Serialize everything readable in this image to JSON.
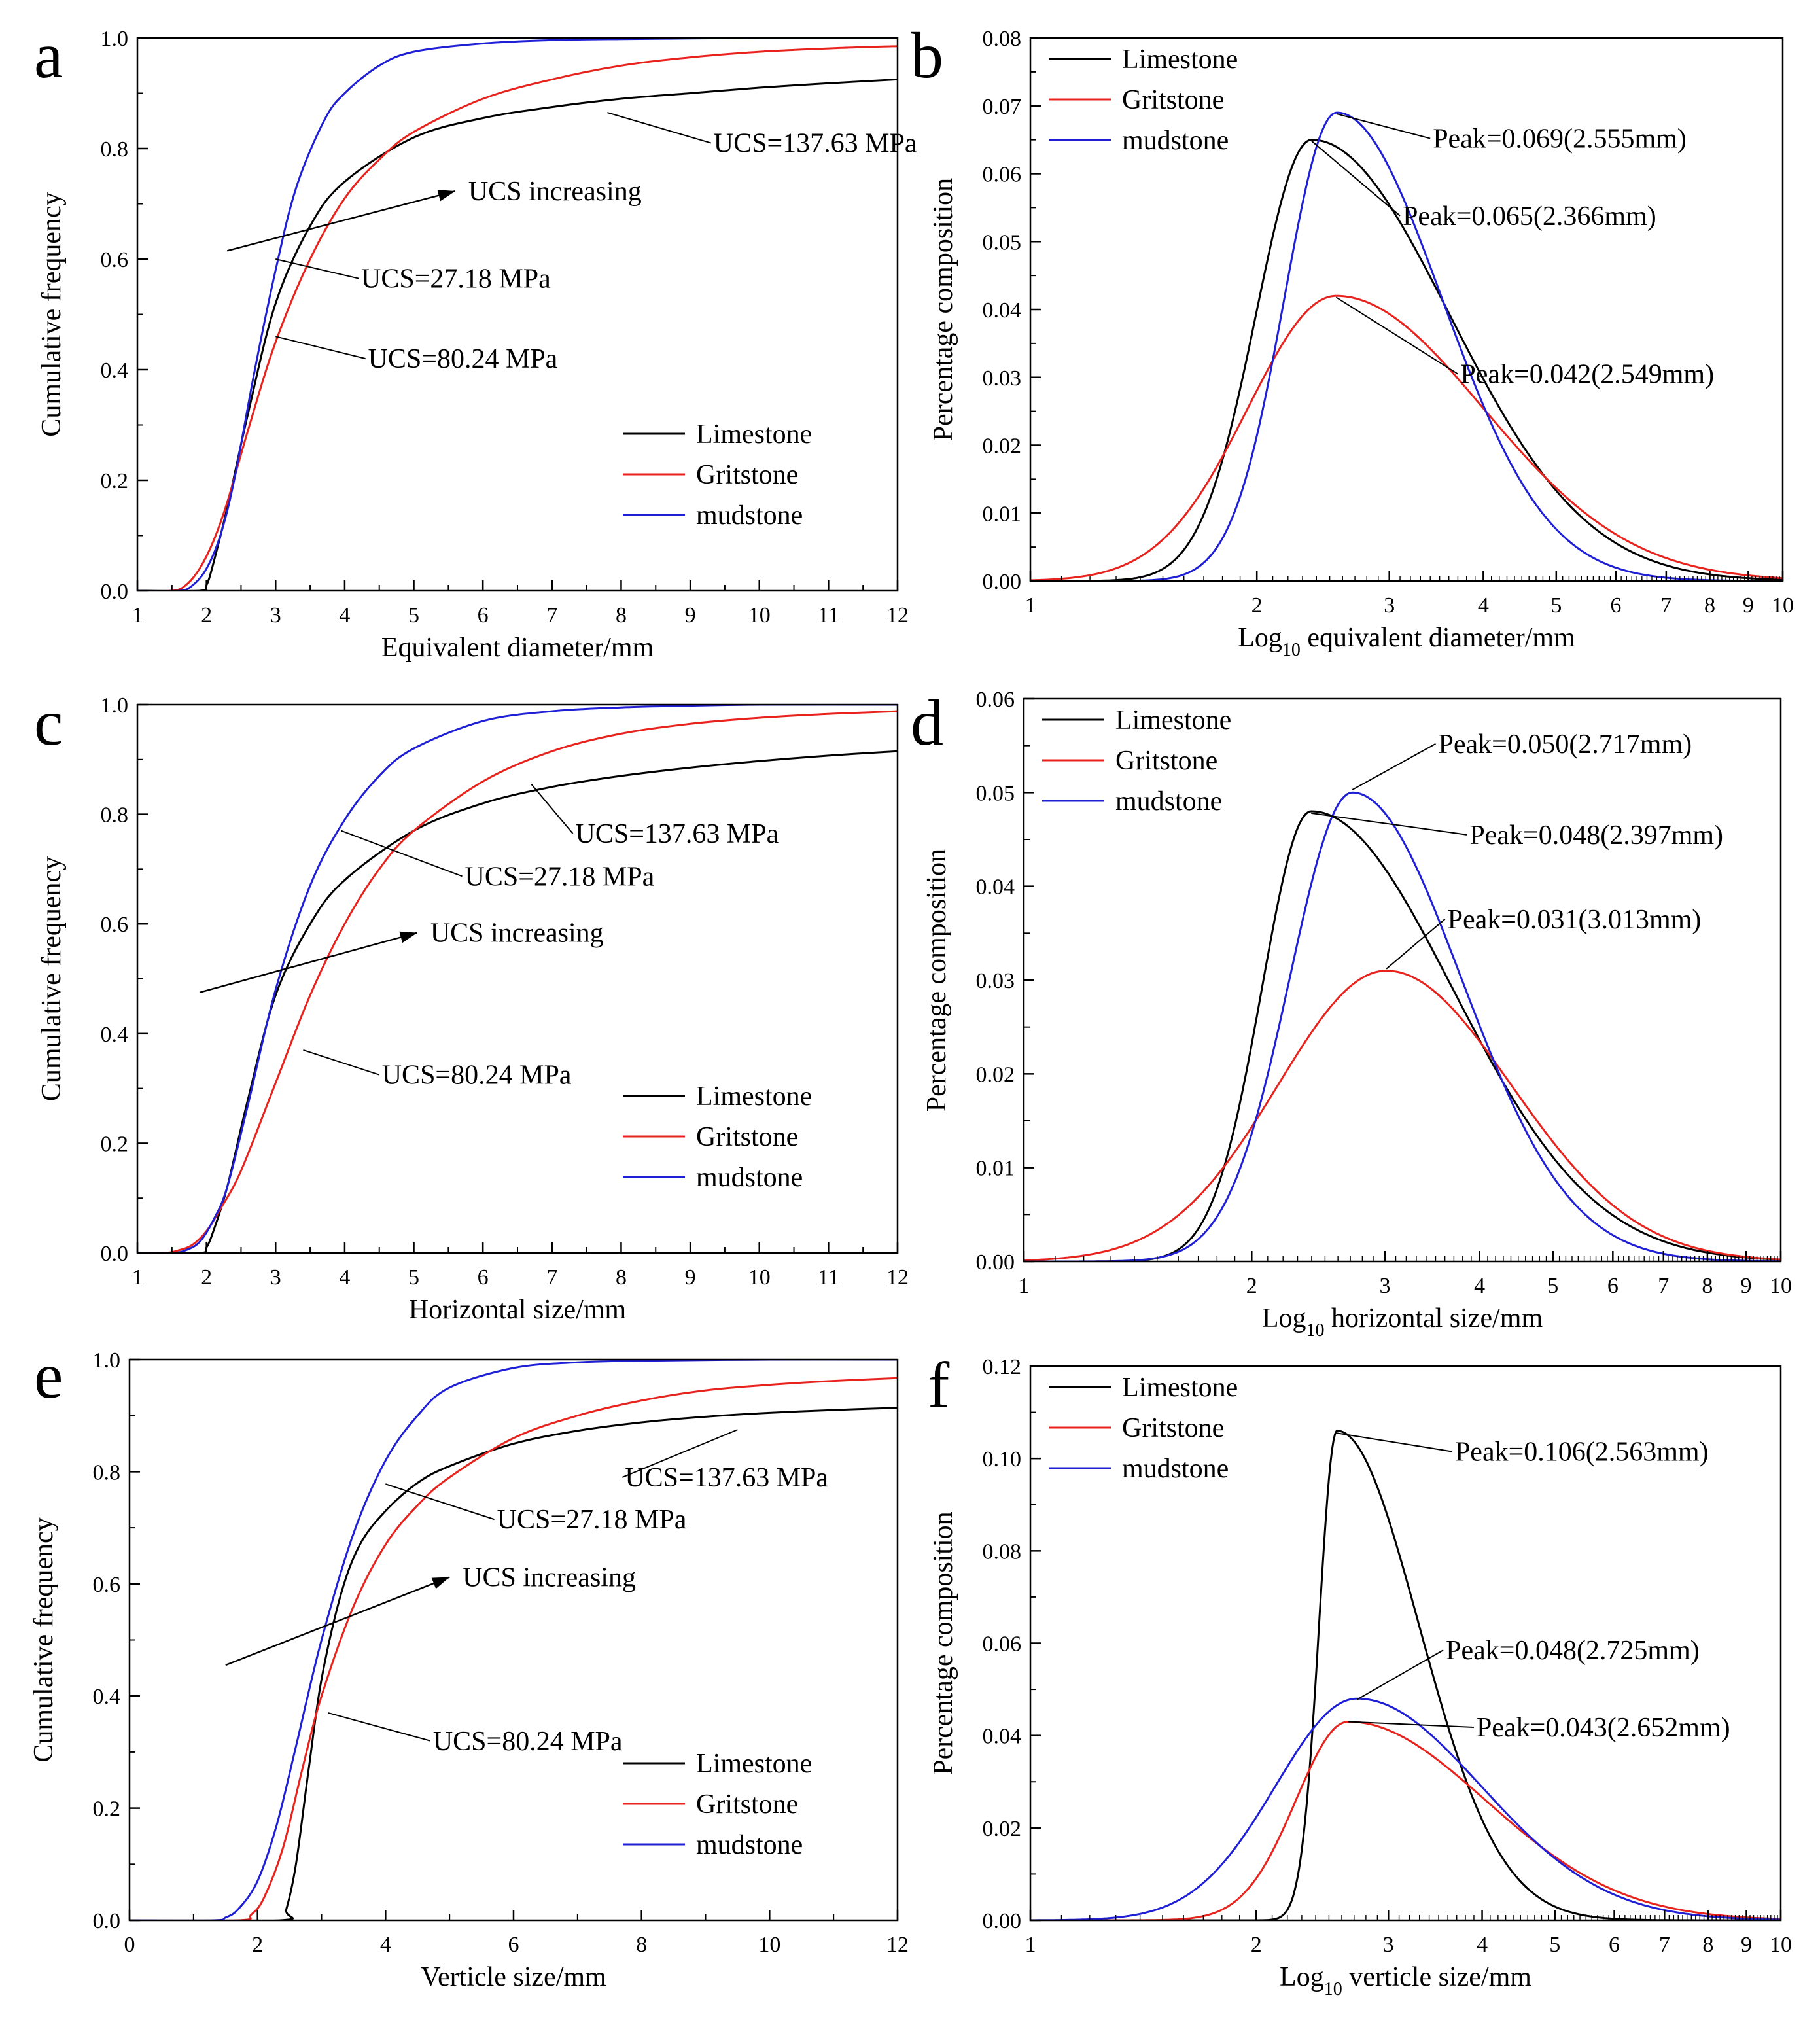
{
  "figure": {
    "series_names": [
      "Limestone",
      "Gritstone",
      "mudstone"
    ],
    "series_colors": {
      "Limestone": "#000000",
      "Gritstone": "#e8231d",
      "mudstone": "#1f1fd6"
    }
  },
  "chart_data": [
    {
      "panel": "a",
      "type": "line",
      "xlabel": "Equivalent diameter/mm",
      "ylabel": "Cumulative frequency",
      "xlim": [
        1,
        12
      ],
      "ylim": [
        0,
        1.0
      ],
      "xscale": "linear",
      "xticks": [
        1,
        2,
        3,
        4,
        5,
        6,
        7,
        8,
        9,
        10,
        11,
        12
      ],
      "yticks": [
        "0.0",
        "0.2",
        "0.4",
        "0.6",
        "0.8",
        "1.0"
      ],
      "legend": "bottom-right",
      "series": [
        {
          "name": "Limestone",
          "x": [
            1.0,
            1.9,
            2.0,
            2.1,
            2.3,
            2.6,
            3.0,
            3.5,
            4.0,
            5.0,
            6.0,
            7.0,
            8.0,
            9.0,
            10.0,
            11.0,
            12.0
          ],
          "y": [
            0,
            0,
            0.01,
            0.05,
            0.15,
            0.32,
            0.52,
            0.66,
            0.74,
            0.82,
            0.855,
            0.875,
            0.89,
            0.9,
            0.91,
            0.918,
            0.925
          ]
        },
        {
          "name": "Gritstone",
          "x": [
            1.0,
            1.5,
            1.7,
            1.9,
            2.1,
            2.3,
            2.6,
            3.0,
            3.5,
            4.0,
            4.5,
            5.0,
            6.0,
            7.0,
            8.0,
            9.0,
            10.0,
            11.0,
            12.0
          ],
          "y": [
            0,
            0,
            0.01,
            0.04,
            0.09,
            0.16,
            0.29,
            0.45,
            0.6,
            0.71,
            0.78,
            0.83,
            0.89,
            0.925,
            0.95,
            0.965,
            0.975,
            0.981,
            0.985
          ]
        },
        {
          "name": "mudstone",
          "x": [
            1.0,
            1.6,
            1.8,
            2.0,
            2.2,
            2.4,
            2.7,
            3.0,
            3.3,
            3.7,
            4.0,
            4.5,
            5.0,
            6.0,
            7.0,
            8.0,
            9.0,
            10.0,
            12.0
          ],
          "y": [
            0,
            0,
            0.01,
            0.04,
            0.1,
            0.2,
            0.4,
            0.58,
            0.73,
            0.85,
            0.9,
            0.95,
            0.975,
            0.99,
            0.996,
            0.998,
            0.999,
            1.0,
            1.0
          ]
        }
      ],
      "annotations": [
        {
          "text": "UCS=137.63 MPa",
          "x": 9.3,
          "y": 0.81,
          "tx": 7.8,
          "ty": 0.865,
          "arrow": false
        },
        {
          "text": "UCS increasing",
          "x": 5.6,
          "y": 0.72,
          "sx": 2.3,
          "sy": 0.615,
          "tx": 5.6,
          "ty": 0.723,
          "arrow": true
        },
        {
          "text": "UCS=27.18 MPa",
          "x": 4.2,
          "y": 0.565,
          "tx": 3.0,
          "ty": 0.6,
          "arrow": false
        },
        {
          "text": "UCS=80.24 MPa",
          "x": 4.3,
          "y": 0.42,
          "tx": 3.0,
          "ty": 0.46,
          "arrow": false
        }
      ]
    },
    {
      "panel": "b",
      "type": "line",
      "xlabel": "Log",
      "xlabel_sub": "10",
      "xlabel_tail": " equivalent diameter/mm",
      "ylabel": "Percentage composition",
      "xlim": [
        1,
        10
      ],
      "ylim": [
        0,
        0.08
      ],
      "xscale": "log",
      "xticks": [
        1,
        2,
        3,
        4,
        5,
        6,
        7,
        8,
        9,
        10
      ],
      "yticks": [
        "0.00",
        "0.01",
        "0.02",
        "0.03",
        "0.04",
        "0.05",
        "0.06",
        "0.07",
        "0.08"
      ],
      "legend": "top-left",
      "series": [
        {
          "name": "Limestone",
          "dist": "lognormal",
          "peak": 0.065,
          "mode": 2.366,
          "sl": 0.17,
          "sr": 0.42
        },
        {
          "name": "Gritstone",
          "dist": "lognormal",
          "peak": 0.042,
          "mode": 2.549,
          "sl": 0.27,
          "sr": 0.45
        },
        {
          "name": "mudstone",
          "dist": "lognormal",
          "peak": 0.069,
          "mode": 2.555,
          "sl": 0.16,
          "sr": 0.32
        }
      ],
      "annotations": [
        {
          "text": "Peak=0.069(2.555mm)",
          "x": 3.4,
          "y": 0.0652,
          "tx": 2.555,
          "ty": 0.0688,
          "arrow": false
        },
        {
          "text": "Peak=0.065(2.366mm)",
          "x": 3.1,
          "y": 0.0538,
          "tx": 2.366,
          "ty": 0.0648,
          "arrow": false
        },
        {
          "text": "Peak=0.042(2.549mm)",
          "x": 3.7,
          "y": 0.0305,
          "tx": 2.549,
          "ty": 0.0418,
          "arrow": false
        }
      ]
    },
    {
      "panel": "c",
      "type": "line",
      "xlabel": "Horizontal size/mm",
      "ylabel": "Cumulative frequency",
      "xlim": [
        1,
        12
      ],
      "ylim": [
        0,
        1.0
      ],
      "xscale": "linear",
      "xticks": [
        1,
        2,
        3,
        4,
        5,
        6,
        7,
        8,
        9,
        10,
        11,
        12
      ],
      "yticks": [
        "0.0",
        "0.2",
        "0.4",
        "0.6",
        "0.8",
        "1.0"
      ],
      "legend": "bottom-right",
      "series": [
        {
          "name": "Limestone",
          "x": [
            1.0,
            1.9,
            2.0,
            2.1,
            2.3,
            2.6,
            3.0,
            3.5,
            4.0,
            5.0,
            6.0,
            7.0,
            8.0,
            9.0,
            10.0,
            11.0,
            12.0
          ],
          "y": [
            0,
            0,
            0.01,
            0.04,
            0.12,
            0.28,
            0.47,
            0.6,
            0.68,
            0.77,
            0.82,
            0.85,
            0.87,
            0.885,
            0.897,
            0.907,
            0.915
          ]
        },
        {
          "name": "Gritstone",
          "x": [
            1.0,
            1.4,
            1.6,
            1.8,
            2.0,
            2.2,
            2.5,
            3.0,
            3.5,
            4.0,
            4.5,
            5.0,
            6.0,
            7.0,
            8.0,
            9.0,
            10.0,
            11.0,
            12.0
          ],
          "y": [
            0,
            0,
            0.005,
            0.015,
            0.04,
            0.08,
            0.15,
            0.31,
            0.47,
            0.6,
            0.7,
            0.77,
            0.86,
            0.915,
            0.947,
            0.965,
            0.976,
            0.983,
            0.988
          ]
        },
        {
          "name": "mudstone",
          "x": [
            1.0,
            1.5,
            1.7,
            1.9,
            2.1,
            2.3,
            2.6,
            3.0,
            3.5,
            4.0,
            4.5,
            5.0,
            6.0,
            7.0,
            8.0,
            9.0,
            10.0,
            12.0
          ],
          "y": [
            0,
            0,
            0.005,
            0.02,
            0.06,
            0.12,
            0.27,
            0.48,
            0.67,
            0.79,
            0.87,
            0.92,
            0.97,
            0.988,
            0.995,
            0.998,
            1.0,
            1.0
          ]
        }
      ],
      "annotations": [
        {
          "text": "UCS=137.63 MPa",
          "x": 7.3,
          "y": 0.765,
          "tx": 6.7,
          "ty": 0.855,
          "arrow": false
        },
        {
          "text": "UCS=27.18 MPa",
          "x": 5.7,
          "y": 0.687,
          "tx": 3.95,
          "ty": 0.77,
          "arrow": false
        },
        {
          "text": "UCS increasing",
          "x": 5.2,
          "y": 0.578,
          "sx": 1.9,
          "sy": 0.475,
          "tx": 5.05,
          "ty": 0.584,
          "arrow": true
        },
        {
          "text": "UCS=80.24 MPa",
          "x": 4.5,
          "y": 0.325,
          "tx": 3.4,
          "ty": 0.37,
          "arrow": false
        }
      ]
    },
    {
      "panel": "d",
      "type": "line",
      "xlabel": "Log",
      "xlabel_sub": "10",
      "xlabel_tail": " horizontal size/mm",
      "ylabel": "Percentage composition",
      "xlim": [
        1,
        10
      ],
      "ylim": [
        0,
        0.06
      ],
      "xscale": "log",
      "xticks": [
        1,
        2,
        3,
        4,
        5,
        6,
        7,
        8,
        9,
        10
      ],
      "yticks": [
        "0.00",
        "0.01",
        "0.02",
        "0.03",
        "0.04",
        "0.05",
        "0.06"
      ],
      "legend": "top-left",
      "series": [
        {
          "name": "Limestone",
          "dist": "lognormal",
          "peak": 0.048,
          "mode": 2.397,
          "sl": 0.15,
          "sr": 0.43
        },
        {
          "name": "Gritstone",
          "dist": "lognormal",
          "peak": 0.031,
          "mode": 3.013,
          "sl": 0.33,
          "sr": 0.38
        },
        {
          "name": "mudstone",
          "dist": "lognormal",
          "peak": 0.05,
          "mode": 2.717,
          "sl": 0.19,
          "sr": 0.33
        }
      ],
      "annotations": [
        {
          "text": "Peak=0.050(2.717mm)",
          "x": 3.5,
          "y": 0.0552,
          "tx": 2.717,
          "ty": 0.0503,
          "arrow": false
        },
        {
          "text": "Peak=0.048(2.397mm)",
          "x": 3.85,
          "y": 0.0455,
          "tx": 2.397,
          "ty": 0.0478,
          "arrow": false
        },
        {
          "text": "Peak=0.031(3.013mm)",
          "x": 3.6,
          "y": 0.0365,
          "tx": 3.013,
          "ty": 0.0312,
          "arrow": false
        }
      ]
    },
    {
      "panel": "e",
      "type": "line",
      "xlabel": "Verticle size/mm",
      "ylabel": "Cumulative frequency",
      "xlim": [
        0,
        12
      ],
      "ylim": [
        0,
        1.0
      ],
      "xscale": "linear",
      "xticks": [
        0,
        2,
        4,
        6,
        8,
        10,
        12
      ],
      "yticks": [
        "0.0",
        "0.2",
        "0.4",
        "0.6",
        "0.8",
        "1.0"
      ],
      "legend": "bottom-right",
      "series": [
        {
          "name": "Limestone",
          "x": [
            0.0,
            2.35,
            2.45,
            2.6,
            2.8,
            3.0,
            3.3,
            3.6,
            4.0,
            4.5,
            5.0,
            6.0,
            7.0,
            8.0,
            9.0,
            10.0,
            11.0,
            12.0
          ],
          "y": [
            0,
            0,
            0.02,
            0.1,
            0.27,
            0.43,
            0.58,
            0.67,
            0.73,
            0.78,
            0.81,
            0.85,
            0.873,
            0.888,
            0.898,
            0.905,
            0.91,
            0.914
          ]
        },
        {
          "name": "Gritstone",
          "x": [
            0.0,
            1.7,
            1.9,
            2.1,
            2.4,
            2.7,
            3.0,
            3.5,
            4.0,
            4.5,
            5.0,
            6.0,
            7.0,
            8.0,
            9.0,
            10.0,
            11.0,
            12.0
          ],
          "y": [
            0,
            0,
            0.01,
            0.04,
            0.13,
            0.27,
            0.4,
            0.56,
            0.67,
            0.74,
            0.79,
            0.86,
            0.9,
            0.927,
            0.945,
            0.955,
            0.962,
            0.967
          ]
        },
        {
          "name": "mudstone",
          "x": [
            0.0,
            1.3,
            1.5,
            1.7,
            2.0,
            2.3,
            2.6,
            3.0,
            3.5,
            4.0,
            4.5,
            5.0,
            6.0,
            7.0,
            8.0,
            10.0,
            12.0
          ],
          "y": [
            0,
            0,
            0.005,
            0.02,
            0.07,
            0.17,
            0.31,
            0.5,
            0.69,
            0.82,
            0.9,
            0.95,
            0.985,
            0.995,
            0.998,
            1.0,
            1.0
          ]
        }
      ],
      "annotations": [
        {
          "text": "UCS=137.63 MPa",
          "x": 7.7,
          "y": 0.79,
          "tx": 9.5,
          "ty": 0.875,
          "arrow": false
        },
        {
          "text": "UCS=27.18 MPa",
          "x": 5.7,
          "y": 0.715,
          "tx": 4.0,
          "ty": 0.778,
          "arrow": false
        },
        {
          "text": "UCS increasing",
          "x": 5.0,
          "y": 0.605,
          "sx": 1.5,
          "sy": 0.455,
          "tx": 5.0,
          "ty": 0.612,
          "arrow": true
        },
        {
          "text": "UCS=80.24 MPa",
          "x": 4.7,
          "y": 0.32,
          "tx": 3.1,
          "ty": 0.37,
          "arrow": false
        }
      ]
    },
    {
      "panel": "f",
      "type": "line",
      "xlabel": "Log",
      "xlabel_sub": "10",
      "xlabel_tail": " verticle size/mm",
      "ylabel": "Percentage composition",
      "xlim": [
        1,
        10
      ],
      "ylim": [
        0,
        0.12
      ],
      "xscale": "log",
      "xticks": [
        1,
        2,
        3,
        4,
        5,
        6,
        7,
        8,
        9,
        10
      ],
      "yticks": [
        "0.00",
        "0.02",
        "0.04",
        "0.06",
        "0.08",
        "0.10",
        "0.12"
      ],
      "legend": "top-left",
      "series": [
        {
          "name": "Limestone",
          "dist": "lognormal",
          "peak": 0.106,
          "mode": 2.563,
          "sl": 0.055,
          "sr": 0.25
        },
        {
          "name": "Gritstone",
          "dist": "lognormal",
          "peak": 0.043,
          "mode": 2.652,
          "sl": 0.16,
          "sr": 0.42
        },
        {
          "name": "mudstone",
          "dist": "lognormal",
          "peak": 0.048,
          "mode": 2.725,
          "sl": 0.25,
          "sr": 0.38
        }
      ],
      "annotations": [
        {
          "text": "Peak=0.106(2.563mm)",
          "x": 3.65,
          "y": 0.1015,
          "tx": 2.563,
          "ty": 0.1055,
          "arrow": false
        },
        {
          "text": "Peak=0.048(2.725mm)",
          "x": 3.55,
          "y": 0.0585,
          "tx": 2.725,
          "ty": 0.0478,
          "arrow": false
        },
        {
          "text": "Peak=0.043(2.652mm)",
          "x": 3.9,
          "y": 0.0418,
          "tx": 2.652,
          "ty": 0.043,
          "arrow": false
        }
      ]
    }
  ]
}
